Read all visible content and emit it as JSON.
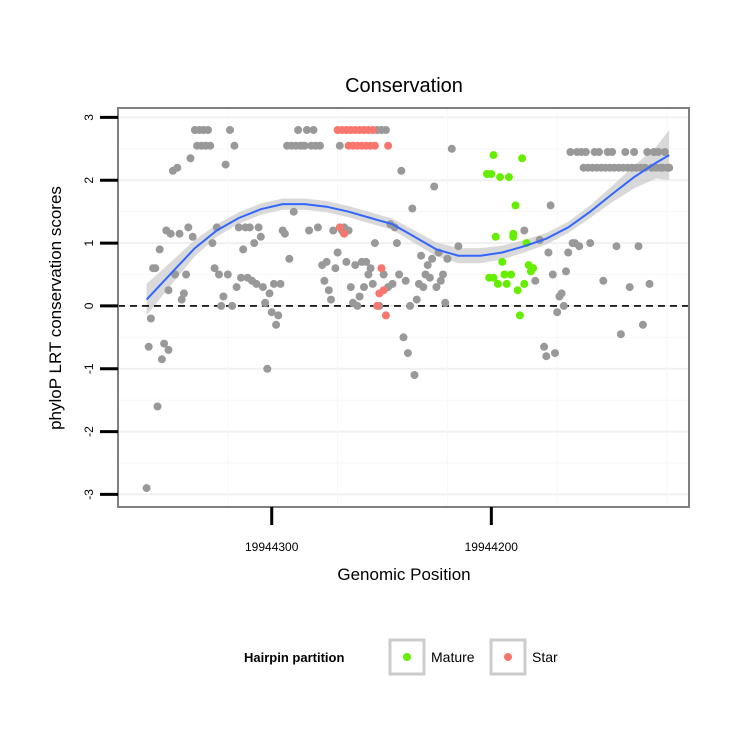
{
  "chart_data": {
    "type": "scatter",
    "title": "Conservation",
    "xlabel": "Genomic Position",
    "ylabel": "phyloP LRT conservation scores",
    "x_reversed": true,
    "xlim": [
      19944370,
      19944110
    ],
    "ylim": [
      -3.2,
      3.15
    ],
    "x_ticks": [
      {
        "value": 19944300,
        "label": "19944300"
      },
      {
        "value": 19944200,
        "label": "19944200"
      }
    ],
    "y_ticks": [
      {
        "value": -3,
        "label": "-3"
      },
      {
        "value": -2,
        "label": "-2"
      },
      {
        "value": -1,
        "label": "-1"
      },
      {
        "value": 0,
        "label": "0"
      },
      {
        "value": 1,
        "label": "1"
      },
      {
        "value": 2,
        "label": "2"
      },
      {
        "value": 3,
        "label": "3"
      }
    ],
    "reference_line": {
      "y": 0,
      "style": "dashed"
    },
    "colors": {
      "Other": "#999999",
      "Mature": "#66ee00",
      "Star": "#f8766d",
      "smooth": "#3366ff",
      "ribbon": "#cccccc"
    },
    "series": [
      {
        "name": "Other",
        "points": [
          [
            19944357,
            -2.9
          ],
          [
            19944356,
            -0.65
          ],
          [
            19944355,
            -0.2
          ],
          [
            19944354,
            0.6
          ],
          [
            19944353,
            0.6
          ],
          [
            19944352,
            -1.6
          ],
          [
            19944351,
            0.9
          ],
          [
            19944350,
            -0.85
          ],
          [
            19944349,
            -0.6
          ],
          [
            19944348,
            1.2
          ],
          [
            19944347,
            0.25
          ],
          [
            19944347,
            -0.7
          ],
          [
            19944346,
            1.15
          ],
          [
            19944345,
            2.15
          ],
          [
            19944344,
            0.5
          ],
          [
            19944343,
            2.2
          ],
          [
            19944342,
            1.15
          ],
          [
            19944341,
            0.1
          ],
          [
            19944340,
            0.2
          ],
          [
            19944339,
            0.5
          ],
          [
            19944338,
            1.25
          ],
          [
            19944337,
            2.35
          ],
          [
            19944336,
            1.1
          ],
          [
            19944335,
            2.8
          ],
          [
            19944334,
            2.55
          ],
          [
            19944333,
            2.8
          ],
          [
            19944332,
            2.55
          ],
          [
            19944331,
            2.8
          ],
          [
            19944330,
            2.55
          ],
          [
            19944329,
            2.8
          ],
          [
            19944328,
            2.55
          ],
          [
            19944327,
            1.0
          ],
          [
            19944326,
            0.6
          ],
          [
            19944325,
            1.25
          ],
          [
            19944324,
            0.5
          ],
          [
            19944323,
            0.0
          ],
          [
            19944322,
            0.15
          ],
          [
            19944321,
            2.25
          ],
          [
            19944320,
            0.5
          ],
          [
            19944319,
            2.8
          ],
          [
            19944318,
            0.0
          ],
          [
            19944317,
            2.55
          ],
          [
            19944316,
            0.3
          ],
          [
            19944315,
            1.25
          ],
          [
            19944314,
            0.45
          ],
          [
            19944313,
            0.9
          ],
          [
            19944312,
            1.25
          ],
          [
            19944311,
            0.45
          ],
          [
            19944310,
            1.25
          ],
          [
            19944309,
            0.4
          ],
          [
            19944308,
            1.0
          ],
          [
            19944307,
            0.35
          ],
          [
            19944306,
            1.25
          ],
          [
            19944305,
            1.1
          ],
          [
            19944304,
            0.3
          ],
          [
            19944303,
            0.05
          ],
          [
            19944302,
            -1.0
          ],
          [
            19944301,
            0.2
          ],
          [
            19944300,
            -0.1
          ],
          [
            19944299,
            0.35
          ],
          [
            19944298,
            -0.3
          ],
          [
            19944297,
            -0.15
          ],
          [
            19944296,
            0.35
          ],
          [
            19944295,
            1.2
          ],
          [
            19944294,
            1.15
          ],
          [
            19944293,
            2.55
          ],
          [
            19944292,
            0.75
          ],
          [
            19944291,
            2.55
          ],
          [
            19944290,
            1.5
          ],
          [
            19944289,
            2.55
          ],
          [
            19944288,
            2.8
          ],
          [
            19944287,
            2.55
          ],
          [
            19944286,
            2.55
          ],
          [
            19944285,
            2.55
          ],
          [
            19944284,
            2.8
          ],
          [
            19944283,
            1.2
          ],
          [
            19944282,
            2.55
          ],
          [
            19944281,
            2.8
          ],
          [
            19944280,
            2.55
          ],
          [
            19944279,
            1.25
          ],
          [
            19944278,
            2.55
          ],
          [
            19944277,
            0.65
          ],
          [
            19944276,
            0.4
          ],
          [
            19944275,
            0.7
          ],
          [
            19944274,
            0.25
          ],
          [
            19944273,
            0.1
          ],
          [
            19944272,
            1.2
          ],
          [
            19944271,
            0.6
          ],
          [
            19944270,
            0.85
          ],
          [
            19944269,
            2.55
          ],
          [
            19944268,
            1.2
          ],
          [
            19944267,
            1.25
          ],
          [
            19944266,
            0.7
          ],
          [
            19944265,
            1.2
          ],
          [
            19944264,
            0.3
          ],
          [
            19944263,
            0.05
          ],
          [
            19944262,
            0.65
          ],
          [
            19944261,
            0.0
          ],
          [
            19944260,
            0.15
          ],
          [
            19944259,
            0.7
          ],
          [
            19944258,
            0.3
          ],
          [
            19944257,
            0.7
          ],
          [
            19944256,
            0.5
          ],
          [
            19944255,
            0.6
          ],
          [
            19944254,
            0.35
          ],
          [
            19944253,
            1.0
          ],
          [
            19944252,
            2.8
          ],
          [
            19944251,
            0.0
          ],
          [
            19944250,
            2.8
          ],
          [
            19944249,
            0.5
          ],
          [
            19944248,
            2.8
          ],
          [
            19944247,
            0.3
          ],
          [
            19944246,
            1.3
          ],
          [
            19944245,
            0.35
          ],
          [
            19944244,
            1.25
          ],
          [
            19944243,
            1.0
          ],
          [
            19944242,
            0.5
          ],
          [
            19944241,
            2.15
          ],
          [
            19944240,
            -0.5
          ],
          [
            19944239,
            0.4
          ],
          [
            19944238,
            -0.75
          ],
          [
            19944237,
            0.0
          ],
          [
            19944236,
            1.55
          ],
          [
            19944235,
            -1.1
          ],
          [
            19944234,
            0.1
          ],
          [
            19944233,
            0.35
          ],
          [
            19944232,
            0.8
          ],
          [
            19944231,
            0.3
          ],
          [
            19944230,
            0.5
          ],
          [
            19944229,
            0.65
          ],
          [
            19944228,
            0.45
          ],
          [
            19944227,
            0.75
          ],
          [
            19944226,
            1.9
          ],
          [
            19944225,
            0.3
          ],
          [
            19944224,
            0.85
          ],
          [
            19944223,
            0.4
          ],
          [
            19944222,
            0.5
          ],
          [
            19944221,
            0.05
          ],
          [
            19944220,
            0.75
          ],
          [
            19944218,
            2.5
          ],
          [
            19944215,
            0.95
          ],
          [
            19944185,
            1.2
          ],
          [
            19944180,
            0.4
          ],
          [
            19944178,
            1.05
          ],
          [
            19944176,
            -0.65
          ],
          [
            19944175,
            -0.8
          ],
          [
            19944174,
            0.85
          ],
          [
            19944173,
            1.6
          ],
          [
            19944172,
            0.5
          ],
          [
            19944171,
            -0.75
          ],
          [
            19944170,
            -0.1
          ],
          [
            19944169,
            0.15
          ],
          [
            19944168,
            0.2
          ],
          [
            19944167,
            0.0
          ],
          [
            19944166,
            0.55
          ],
          [
            19944165,
            0.85
          ],
          [
            19944164,
            2.45
          ],
          [
            19944163,
            1.0
          ],
          [
            19944162,
            1.0
          ],
          [
            19944161,
            2.45
          ],
          [
            19944160,
            0.95
          ],
          [
            19944159,
            2.45
          ],
          [
            19944158,
            2.2
          ],
          [
            19944157,
            2.45
          ],
          [
            19944156,
            2.2
          ],
          [
            19944155,
            1.0
          ],
          [
            19944154,
            2.2
          ],
          [
            19944153,
            2.45
          ],
          [
            19944152,
            2.2
          ],
          [
            19944151,
            2.45
          ],
          [
            19944150,
            2.2
          ],
          [
            19944149,
            0.4
          ],
          [
            19944148,
            2.2
          ],
          [
            19944147,
            2.45
          ],
          [
            19944146,
            2.2
          ],
          [
            19944145,
            2.45
          ],
          [
            19944144,
            2.2
          ],
          [
            19944143,
            0.95
          ],
          [
            19944142,
            2.2
          ],
          [
            19944141,
            -0.45
          ],
          [
            19944140,
            2.2
          ],
          [
            19944139,
            2.45
          ],
          [
            19944138,
            2.2
          ],
          [
            19944137,
            0.3
          ],
          [
            19944136,
            2.2
          ],
          [
            19944135,
            2.45
          ],
          [
            19944134,
            2.2
          ],
          [
            19944133,
            0.95
          ],
          [
            19944132,
            2.2
          ],
          [
            19944131,
            -0.3
          ],
          [
            19944130,
            2.2
          ],
          [
            19944129,
            2.45
          ],
          [
            19944128,
            0.35
          ],
          [
            19944127,
            2.2
          ],
          [
            19944126,
            2.45
          ],
          [
            19944125,
            2.2
          ],
          [
            19944124,
            2.45
          ],
          [
            19944123,
            2.2
          ],
          [
            19944122,
            2.2
          ],
          [
            19944121,
            2.45
          ],
          [
            19944120,
            2.2
          ],
          [
            19944119,
            2.2
          ]
        ]
      },
      {
        "name": "Mature",
        "points": [
          [
            19944201,
            0.45
          ],
          [
            19944200,
            2.1
          ],
          [
            19944199,
            2.4
          ],
          [
            19944198,
            1.1
          ],
          [
            19944197,
            0.35
          ],
          [
            19944196,
            2.05
          ],
          [
            19944195,
            0.7
          ],
          [
            19944194,
            0.5
          ],
          [
            19944193,
            0.35
          ],
          [
            19944192,
            2.05
          ],
          [
            19944191,
            0.5
          ],
          [
            19944190,
            1.15
          ],
          [
            19944189,
            1.6
          ],
          [
            19944188,
            0.25
          ],
          [
            19944187,
            -0.15
          ],
          [
            19944186,
            2.35
          ],
          [
            19944185,
            0.35
          ],
          [
            19944184,
            1.0
          ],
          [
            19944183,
            0.65
          ],
          [
            19944182,
            0.55
          ],
          [
            19944181,
            0.6
          ],
          [
            19944202,
            2.1
          ],
          [
            19944199,
            0.45
          ],
          [
            19944190,
            1.1
          ]
        ]
      },
      {
        "name": "Star",
        "points": [
          [
            19944270,
            2.8
          ],
          [
            19944269,
            1.25
          ],
          [
            19944268,
            2.8
          ],
          [
            19944267,
            1.15
          ],
          [
            19944266,
            2.8
          ],
          [
            19944265,
            2.55
          ],
          [
            19944264,
            2.8
          ],
          [
            19944263,
            2.55
          ],
          [
            19944262,
            2.8
          ],
          [
            19944261,
            2.55
          ],
          [
            19944260,
            2.8
          ],
          [
            19944259,
            2.55
          ],
          [
            19944258,
            2.8
          ],
          [
            19944257,
            2.55
          ],
          [
            19944256,
            2.8
          ],
          [
            19944255,
            2.55
          ],
          [
            19944254,
            2.8
          ],
          [
            19944253,
            2.55
          ],
          [
            19944252,
            0.0
          ],
          [
            19944251,
            0.2
          ],
          [
            19944250,
            0.6
          ],
          [
            19944249,
            0.25
          ],
          [
            19944248,
            -0.15
          ],
          [
            19944247,
            2.55
          ]
        ]
      }
    ],
    "smooth": [
      [
        19944357,
        0.1
      ],
      [
        19944345,
        0.55
      ],
      [
        19944335,
        0.92
      ],
      [
        19944325,
        1.2
      ],
      [
        19944315,
        1.4
      ],
      [
        19944305,
        1.54
      ],
      [
        19944295,
        1.62
      ],
      [
        19944285,
        1.62
      ],
      [
        19944275,
        1.58
      ],
      [
        19944265,
        1.5
      ],
      [
        19944255,
        1.4
      ],
      [
        19944245,
        1.3
      ],
      [
        19944235,
        1.1
      ],
      [
        19944225,
        0.9
      ],
      [
        19944215,
        0.8
      ],
      [
        19944205,
        0.8
      ],
      [
        19944195,
        0.85
      ],
      [
        19944185,
        0.95
      ],
      [
        19944175,
        1.07
      ],
      [
        19944165,
        1.25
      ],
      [
        19944155,
        1.5
      ],
      [
        19944145,
        1.78
      ],
      [
        19944135,
        2.05
      ],
      [
        19944125,
        2.28
      ],
      [
        19944119,
        2.4
      ]
    ],
    "ribbon_halfwidth": [
      0.25,
      0.18,
      0.13,
      0.1,
      0.09,
      0.09,
      0.09,
      0.09,
      0.09,
      0.09,
      0.09,
      0.09,
      0.1,
      0.11,
      0.12,
      0.12,
      0.11,
      0.1,
      0.09,
      0.09,
      0.1,
      0.13,
      0.18,
      0.25,
      0.4
    ],
    "legend": {
      "title": "Hairpin partition",
      "entries": [
        "Mature",
        "Star"
      ],
      "position": "bottom"
    }
  }
}
